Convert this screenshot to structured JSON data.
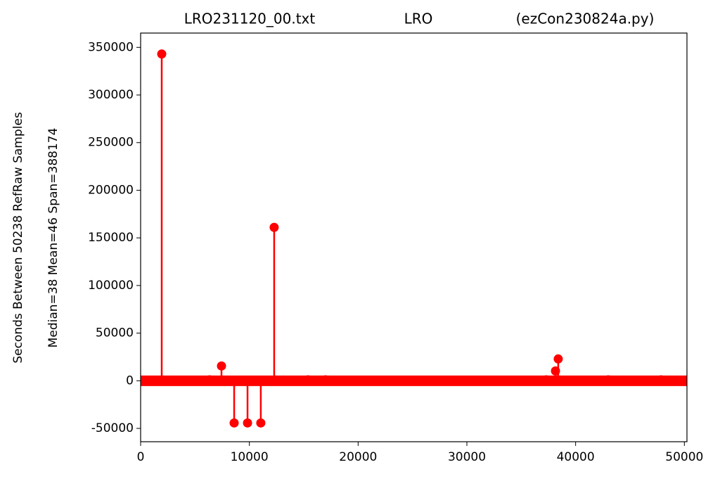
{
  "chart_data": {
    "type": "stem",
    "title": [
      "LRO231120_00.txt",
      "LRO",
      "(ezCon230824a.py)"
    ],
    "ylabel": [
      "Seconds Between 50238 RefRaw Samples",
      "Median=38  Mean=46  Span=388174"
    ],
    "color": "#ff0000",
    "x": [
      1940,
      6340,
      7436,
      8600,
      9830,
      11050,
      12280,
      15390,
      17000,
      37300,
      38150,
      38400,
      43000,
      47850
    ],
    "values": [
      343000,
      1000,
      15500,
      -44300,
      -44300,
      -44300,
      161000,
      1000,
      1000,
      1000,
      10300,
      22900,
      1000,
      1000
    ],
    "xlim": [
      0,
      50238
    ],
    "ylim": [
      -64000,
      365000
    ],
    "xticks": [
      0,
      10000,
      20000,
      30000,
      40000,
      50000
    ],
    "yticks": [
      -50000,
      0,
      50000,
      100000,
      150000,
      200000,
      250000,
      300000,
      350000
    ]
  }
}
